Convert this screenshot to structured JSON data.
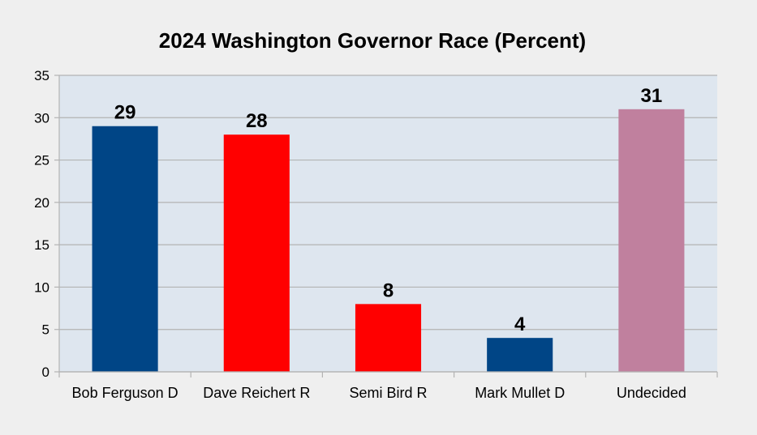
{
  "chart_data": {
    "type": "bar",
    "title": "2024 Washington Governor Race (Percent)",
    "xlabel": "",
    "ylabel": "",
    "categories": [
      "Bob Ferguson D",
      "Dave Reichert R",
      "Semi Bird R",
      "Mark Mullet D",
      "Undecided"
    ],
    "values": [
      29,
      28,
      8,
      4,
      31
    ],
    "data_labels": [
      "29",
      "28",
      "8",
      "4",
      "31"
    ],
    "bar_colors": [
      "#004586",
      "#ff0000",
      "#ff0000",
      "#004586",
      "#c0809e"
    ],
    "ylim": [
      0,
      35
    ],
    "yticks": [
      0,
      5,
      10,
      15,
      20,
      25,
      30,
      35
    ],
    "ytick_labels": [
      "0",
      "5",
      "10",
      "15",
      "20",
      "25",
      "30",
      "35"
    ],
    "grid": true,
    "legend": "none",
    "plot_background": "#dee6ef",
    "page_background": "#efefef",
    "gridline_color": "#b3b3b3"
  }
}
